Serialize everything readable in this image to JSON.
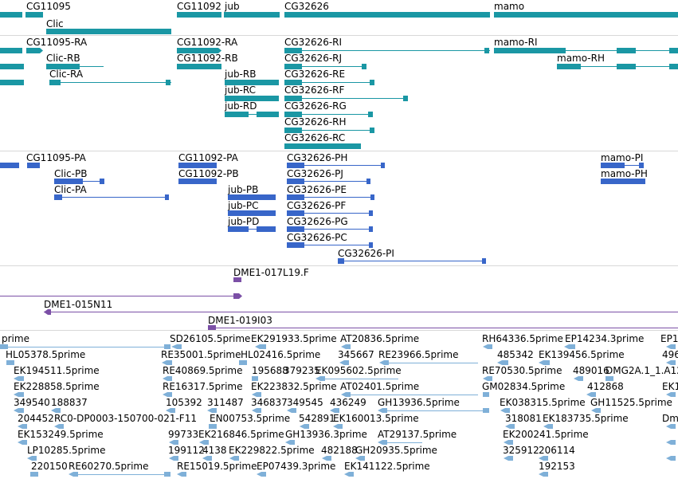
{
  "colors": {
    "teal": "#1a97a4",
    "blue": "#3866c9",
    "purple": "#7b4fa6",
    "est": "#7fb0d8",
    "separator": "#d8d8d8"
  },
  "tracks": {
    "genes": {
      "name": "gene-track",
      "labels": [
        {
          "id": "cg11095",
          "text": "CG11095"
        },
        {
          "id": "cg11092",
          "text": "CG11092"
        },
        {
          "id": "jub",
          "text": "jub"
        },
        {
          "id": "cg32626",
          "text": "CG32626"
        },
        {
          "id": "mamo",
          "text": "mamo"
        },
        {
          "id": "clic",
          "text": "Clic"
        }
      ]
    },
    "transcripts": {
      "name": "transcript-track",
      "labels": [
        "CG11095-RA",
        "CG11092-RA",
        "CG32626-RI",
        "mamo-RI",
        "Clic-RB",
        "CG11092-RB",
        "CG32626-RJ",
        "mamo-RH",
        "Clic-RA",
        "jub-RB",
        "CG32626-RE",
        "jub-RC",
        "CG32626-RF",
        "jub-RD",
        "CG32626-RG",
        "CG32626-RH",
        "CG32626-RC"
      ]
    },
    "proteins": {
      "name": "protein-track",
      "labels": [
        "CG11095-PA",
        "CG11092-PA",
        "CG32626-PH",
        "mamo-PI",
        "Clic-PB",
        "CG11092-PB",
        "CG32626-PJ",
        "mamo-PH",
        "Clic-PA",
        "jub-PB",
        "CG32626-PE",
        "jub-PC",
        "CG32626-PF",
        "jub-PD",
        "CG32626-PG",
        "CG32626-PC",
        "CG32626-PI"
      ]
    },
    "clones": {
      "name": "clone-track",
      "labels": [
        "DME1-017L19.F",
        "DME1-015N11",
        "DME1-019I03"
      ]
    },
    "ests": {
      "name": "est-track",
      "rows": [
        [
          "prime",
          "SD26105.5prime",
          "EK291933.5prime",
          "AT20836.5prime",
          "RH64336.5prime",
          "EP14234.3prime",
          "EP1"
        ],
        [
          "HL05378.5prime",
          "RE35001.5prime",
          "HL02416.5prime",
          "345667",
          "RE23966.5prime",
          "485342",
          "EK139456.5prime",
          "496"
        ],
        [
          "EK194511.5prime",
          "RE40869.5prime",
          "195688",
          "379235",
          "EK095602.5prime",
          "RE70530.5prime",
          "489016",
          "DMG2A.1_1.A12"
        ],
        [
          "EK228858.5prime",
          "RE16317.5prime",
          "EK223832.5prime",
          "AT02401.5prime",
          "GM02834.5prime",
          "412868",
          "EK1"
        ],
        [
          "349540",
          "188837",
          "105392",
          "311487",
          "346837",
          "349545",
          "436249",
          "GH13936.5prime",
          "EK038315.5prime",
          "GH11525.5prime"
        ],
        [
          "204452",
          "RC0-DP0003-150700-021-F11",
          "EN00753.5prime",
          "542891",
          "EK160013.5prime",
          "318081",
          "EK183735.5prime",
          "Dm"
        ],
        [
          "EK153249.5prime",
          "99733",
          "EK216846.5prime",
          "GH13936.3prime",
          "AT29137.5prime",
          "EK200241.5prime"
        ],
        [
          "LP10285.5prime",
          "199112",
          "4138",
          "EK229822.5prime",
          "482188",
          "GH20935.5prime",
          "325912",
          "206114"
        ],
        [
          "220150",
          "RE60270.5prime",
          "RE15019.5prime",
          "EP07439.3prime",
          "EK141122.5prime",
          "192153"
        ]
      ]
    }
  }
}
